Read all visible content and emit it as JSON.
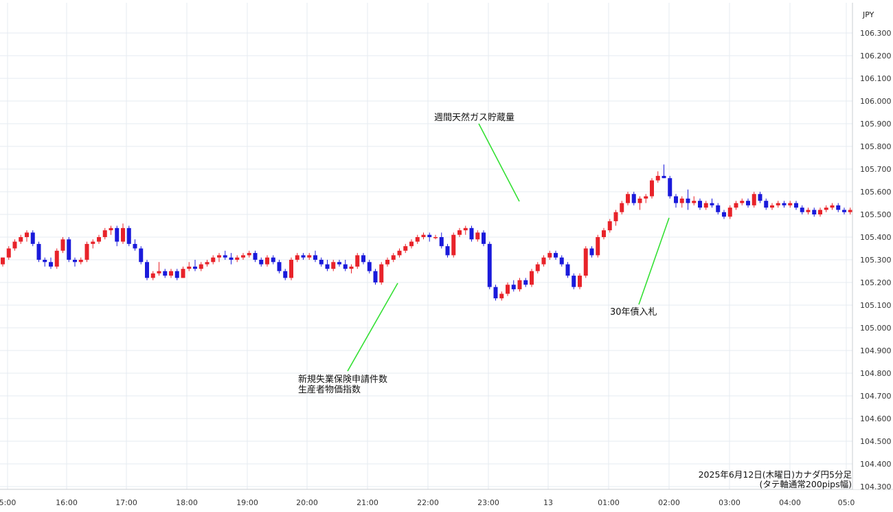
{
  "chart_data": {
    "type": "candlestick",
    "currency_label": "JPY",
    "caption_line1": "2025年6月12日(木曜日)カナダ円5分足",
    "caption_line2": "(タテ軸通常200pips幅)",
    "ylim": [
      104.3,
      106.35
    ],
    "y_ticks": [
      "106.300",
      "106.200",
      "106.100",
      "106.000",
      "105.900",
      "105.800",
      "105.700",
      "105.600",
      "105.500",
      "105.400",
      "105.300",
      "105.200",
      "105.100",
      "105.000",
      "104.900",
      "104.800",
      "104.700",
      "104.600",
      "104.500",
      "104.400",
      "104.300"
    ],
    "x_ticks": [
      "5:00",
      "16:00",
      "17:00",
      "18:00",
      "19:00",
      "20:00",
      "21:00",
      "22:00",
      "23:00",
      "13",
      "01:00",
      "02:00",
      "03:00",
      "04:00",
      "05:0"
    ],
    "colors": {
      "up": "#e8232a",
      "down": "#1a1adb",
      "grid": "#e6ebf0",
      "annotation_line": "#33e033"
    },
    "annotations": [
      {
        "lines": [
          "週間天然ガス貯蔵量"
        ],
        "candle_index": 89
      },
      {
        "lines": [
          "新規失業保険申請件数",
          "生産者物価指数"
        ],
        "candle_index": 66
      },
      {
        "lines": [
          "30年債入札"
        ],
        "candle_index": 114
      }
    ],
    "candles": [
      [
        105.28,
        105.31,
        105.27,
        105.31
      ],
      [
        105.31,
        105.36,
        105.3,
        105.35
      ],
      [
        105.35,
        105.39,
        105.34,
        105.38
      ],
      [
        105.38,
        105.41,
        105.37,
        105.4
      ],
      [
        105.4,
        105.43,
        105.38,
        105.42
      ],
      [
        105.42,
        105.43,
        105.36,
        105.37
      ],
      [
        105.37,
        105.38,
        105.29,
        105.3
      ],
      [
        105.3,
        105.31,
        105.27,
        105.29
      ],
      [
        105.29,
        105.31,
        105.26,
        105.27
      ],
      [
        105.27,
        105.35,
        105.26,
        105.34
      ],
      [
        105.34,
        105.4,
        105.33,
        105.39
      ],
      [
        105.39,
        105.4,
        105.29,
        105.3
      ],
      [
        105.3,
        105.31,
        105.27,
        105.29
      ],
      [
        105.29,
        105.31,
        105.28,
        105.3
      ],
      [
        105.3,
        105.38,
        105.29,
        105.37
      ],
      [
        105.37,
        105.39,
        105.35,
        105.38
      ],
      [
        105.38,
        105.41,
        105.37,
        105.4
      ],
      [
        105.4,
        105.44,
        105.39,
        105.43
      ],
      [
        105.43,
        105.45,
        105.41,
        105.44
      ],
      [
        105.44,
        105.45,
        105.36,
        105.38
      ],
      [
        105.38,
        105.46,
        105.37,
        105.44
      ],
      [
        105.44,
        105.45,
        105.36,
        105.37
      ],
      [
        105.37,
        105.39,
        105.34,
        105.35
      ],
      [
        105.35,
        105.36,
        105.28,
        105.29
      ],
      [
        105.29,
        105.3,
        105.21,
        105.22
      ],
      [
        105.22,
        105.25,
        105.21,
        105.24
      ],
      [
        105.24,
        105.29,
        105.23,
        105.25
      ],
      [
        105.25,
        105.26,
        105.22,
        105.23
      ],
      [
        105.23,
        105.26,
        105.22,
        105.25
      ],
      [
        105.25,
        105.26,
        105.21,
        105.22
      ],
      [
        105.22,
        105.27,
        105.22,
        105.26
      ],
      [
        105.26,
        105.29,
        105.25,
        105.27
      ],
      [
        105.27,
        105.3,
        105.25,
        105.26
      ],
      [
        105.26,
        105.29,
        105.25,
        105.28
      ],
      [
        105.28,
        105.3,
        105.27,
        105.29
      ],
      [
        105.29,
        105.32,
        105.28,
        105.31
      ],
      [
        105.31,
        105.33,
        105.29,
        105.32
      ],
      [
        105.32,
        105.34,
        105.3,
        105.31
      ],
      [
        105.31,
        105.33,
        105.28,
        105.3
      ],
      [
        105.3,
        105.32,
        105.29,
        105.31
      ],
      [
        105.31,
        105.33,
        105.3,
        105.32
      ],
      [
        105.32,
        105.34,
        105.31,
        105.33
      ],
      [
        105.33,
        105.34,
        105.29,
        105.3
      ],
      [
        105.3,
        105.31,
        105.27,
        105.28
      ],
      [
        105.28,
        105.32,
        105.27,
        105.31
      ],
      [
        105.31,
        105.32,
        105.28,
        105.29
      ],
      [
        105.29,
        105.3,
        105.24,
        105.25
      ],
      [
        105.25,
        105.26,
        105.21,
        105.22
      ],
      [
        105.22,
        105.31,
        105.21,
        105.3
      ],
      [
        105.3,
        105.33,
        105.29,
        105.32
      ],
      [
        105.32,
        105.33,
        105.3,
        105.31
      ],
      [
        105.31,
        105.33,
        105.3,
        105.32
      ],
      [
        105.32,
        105.34,
        105.29,
        105.3
      ],
      [
        105.3,
        105.31,
        105.27,
        105.28
      ],
      [
        105.28,
        105.3,
        105.25,
        105.26
      ],
      [
        105.26,
        105.3,
        105.25,
        105.29
      ],
      [
        105.29,
        105.3,
        105.27,
        105.28
      ],
      [
        105.28,
        105.3,
        105.25,
        105.26
      ],
      [
        105.26,
        105.28,
        105.24,
        105.27
      ],
      [
        105.27,
        105.33,
        105.26,
        105.32
      ],
      [
        105.32,
        105.33,
        105.28,
        105.29
      ],
      [
        105.29,
        105.3,
        105.24,
        105.25
      ],
      [
        105.25,
        105.26,
        105.19,
        105.2
      ],
      [
        105.2,
        105.29,
        105.19,
        105.28
      ],
      [
        105.28,
        105.31,
        105.27,
        105.3
      ],
      [
        105.3,
        105.33,
        105.29,
        105.32
      ],
      [
        105.32,
        105.35,
        105.31,
        105.34
      ],
      [
        105.34,
        105.37,
        105.33,
        105.36
      ],
      [
        105.36,
        105.39,
        105.35,
        105.38
      ],
      [
        105.38,
        105.41,
        105.37,
        105.4
      ],
      [
        105.4,
        105.42,
        105.39,
        105.41
      ],
      [
        105.41,
        105.42,
        105.38,
        105.4
      ],
      [
        105.4,
        105.41,
        105.39,
        105.4
      ],
      [
        105.4,
        105.42,
        105.35,
        105.36
      ],
      [
        105.36,
        105.37,
        105.31,
        105.32
      ],
      [
        105.32,
        105.42,
        105.31,
        105.41
      ],
      [
        105.41,
        105.44,
        105.4,
        105.43
      ],
      [
        105.43,
        105.45,
        105.41,
        105.44
      ],
      [
        105.44,
        105.45,
        105.38,
        105.39
      ],
      [
        105.39,
        105.43,
        105.38,
        105.42
      ],
      [
        105.42,
        105.43,
        105.36,
        105.37
      ],
      [
        105.37,
        105.38,
        105.17,
        105.18
      ],
      [
        105.18,
        105.19,
        105.12,
        105.13
      ],
      [
        105.13,
        105.16,
        105.12,
        105.15
      ],
      [
        105.15,
        105.2,
        105.14,
        105.19
      ],
      [
        105.19,
        105.21,
        105.16,
        105.17
      ],
      [
        105.17,
        105.22,
        105.16,
        105.21
      ],
      [
        105.21,
        105.22,
        105.18,
        105.19
      ],
      [
        105.19,
        105.26,
        105.18,
        105.25
      ],
      [
        105.25,
        105.29,
        105.24,
        105.28
      ],
      [
        105.28,
        105.32,
        105.27,
        105.31
      ],
      [
        105.31,
        105.34,
        105.3,
        105.33
      ],
      [
        105.33,
        105.34,
        105.3,
        105.31
      ],
      [
        105.31,
        105.32,
        105.27,
        105.28
      ],
      [
        105.28,
        105.29,
        105.22,
        105.23
      ],
      [
        105.23,
        105.24,
        105.17,
        105.18
      ],
      [
        105.18,
        105.24,
        105.17,
        105.23
      ],
      [
        105.23,
        105.36,
        105.22,
        105.35
      ],
      [
        105.35,
        105.36,
        105.31,
        105.32
      ],
      [
        105.32,
        105.41,
        105.31,
        105.4
      ],
      [
        105.4,
        105.44,
        105.39,
        105.43
      ],
      [
        105.43,
        105.48,
        105.42,
        105.47
      ],
      [
        105.47,
        105.52,
        105.45,
        105.51
      ],
      [
        105.51,
        105.56,
        105.5,
        105.55
      ],
      [
        105.55,
        105.6,
        105.54,
        105.59
      ],
      [
        105.59,
        105.6,
        105.54,
        105.55
      ],
      [
        105.55,
        105.58,
        105.52,
        105.57
      ],
      [
        105.57,
        105.59,
        105.55,
        105.58
      ],
      [
        105.58,
        105.66,
        105.57,
        105.65
      ],
      [
        105.65,
        105.69,
        105.64,
        105.67
      ],
      [
        105.67,
        105.72,
        105.66,
        105.66
      ],
      [
        105.66,
        105.67,
        105.57,
        105.58
      ],
      [
        105.58,
        105.59,
        105.53,
        105.55
      ],
      [
        105.55,
        105.58,
        105.53,
        105.57
      ],
      [
        105.57,
        105.61,
        105.52,
        105.55
      ]
    ]
  }
}
